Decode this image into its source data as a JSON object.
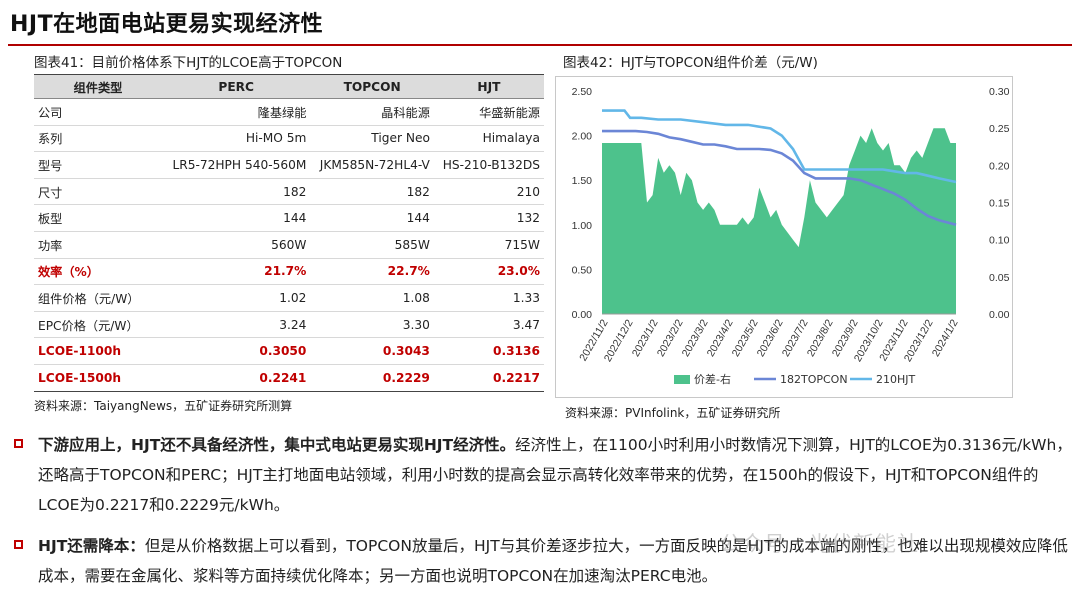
{
  "page_title": "HJT在地面电站更易实现经济性",
  "table_figure": {
    "caption": "图表41：目前价格体系下HJT的LCOE高于TOPCON",
    "headers": [
      "组件类型",
      "PERC",
      "TOPCON",
      "HJT"
    ],
    "rows": [
      {
        "label": "公司",
        "values": [
          "隆基绿能",
          "晶科能源",
          "华盛新能源"
        ],
        "highlight": false
      },
      {
        "label": "系列",
        "values": [
          "Hi-MO 5m",
          "Tiger Neo",
          "Himalaya"
        ],
        "highlight": false
      },
      {
        "label": "型号",
        "values": [
          "LR5-72HPH 540-560M",
          "JKM585N-72HL4-V",
          "HS-210-B132DS"
        ],
        "highlight": false
      },
      {
        "label": "尺寸",
        "values": [
          "182",
          "182",
          "210"
        ],
        "highlight": false
      },
      {
        "label": "板型",
        "values": [
          "144",
          "144",
          "132"
        ],
        "highlight": false
      },
      {
        "label": "功率",
        "values": [
          "560W",
          "585W",
          "715W"
        ],
        "highlight": false
      },
      {
        "label": "效率（%）",
        "values": [
          "21.7%",
          "22.7%",
          "23.0%"
        ],
        "highlight": true
      },
      {
        "label": "组件价格（元/W）",
        "values": [
          "1.02",
          "1.08",
          "1.33"
        ],
        "highlight": false
      },
      {
        "label": "EPC价格（元/W）",
        "values": [
          "3.24",
          "3.30",
          "3.47"
        ],
        "highlight": false
      },
      {
        "label": "LCOE-1100h",
        "values": [
          "0.3050",
          "0.3043",
          "0.3136"
        ],
        "highlight": true
      },
      {
        "label": "LCOE-1500h",
        "values": [
          "0.2241",
          "0.2229",
          "0.2217"
        ],
        "highlight": true
      }
    ],
    "source": "资料来源：TaiyangNews，五矿证券研究所测算"
  },
  "chart_figure": {
    "caption": "图表42：HJT与TOPCON组件价差（元/W)",
    "source": "资料来源：PVInfolink，五矿证券研究所"
  },
  "chart_data": {
    "type": "area",
    "title": "图表42：HJT与TOPCON组件价差（元/W)",
    "x_tick_labels": [
      "2022/11/2",
      "2022/12/2",
      "2023/1/2",
      "2023/2/2",
      "2023/3/2",
      "2023/4/2",
      "2023/5/2",
      "2023/6/2",
      "2023/7/2",
      "2023/8/2",
      "2023/9/2",
      "2023/10/2",
      "2023/11/2",
      "2023/12/2",
      "2024/1/2"
    ],
    "y_left_ticks": [
      "0.00",
      "0.50",
      "1.00",
      "1.50",
      "2.00",
      "2.50"
    ],
    "y_left_range": [
      0,
      2.5
    ],
    "y_right_ticks": [
      "0.00",
      "0.05",
      "0.10",
      "0.15",
      "0.20",
      "0.25",
      "0.30"
    ],
    "y_right_range": [
      0,
      0.3
    ],
    "x_range": [
      0,
      63
    ],
    "series": [
      {
        "name": "价差-右",
        "kind": "area",
        "axis": "right",
        "color": "#4dc28c",
        "x": [
          0,
          7,
          8,
          9,
          10,
          11,
          12,
          13,
          14,
          15,
          16,
          17,
          18,
          19,
          20,
          21,
          22,
          23,
          24,
          25,
          26,
          27,
          28,
          29,
          30,
          31,
          32,
          33,
          34,
          35,
          36,
          37,
          38,
          39,
          40,
          41,
          42,
          43,
          44,
          45,
          46,
          47,
          48,
          49,
          50,
          51,
          52,
          53,
          54,
          55,
          56,
          57,
          58,
          59,
          60,
          61,
          62,
          63
        ],
        "y": [
          0.23,
          0.23,
          0.15,
          0.16,
          0.21,
          0.19,
          0.2,
          0.19,
          0.16,
          0.19,
          0.18,
          0.15,
          0.14,
          0.15,
          0.14,
          0.12,
          0.12,
          0.12,
          0.12,
          0.13,
          0.12,
          0.13,
          0.17,
          0.15,
          0.13,
          0.14,
          0.12,
          0.11,
          0.1,
          0.09,
          0.13,
          0.18,
          0.15,
          0.14,
          0.13,
          0.14,
          0.15,
          0.16,
          0.2,
          0.22,
          0.24,
          0.23,
          0.25,
          0.23,
          0.22,
          0.23,
          0.2,
          0.2,
          0.19,
          0.21,
          0.22,
          0.21,
          0.23,
          0.25,
          0.25,
          0.25,
          0.23,
          0.23
        ]
      },
      {
        "name": "182TOPCON",
        "kind": "line",
        "axis": "left",
        "color": "#6b86d6",
        "x": [
          0,
          4,
          6,
          8,
          10,
          12,
          14,
          16,
          18,
          20,
          22,
          24,
          26,
          28,
          30,
          32,
          34,
          36,
          38,
          40,
          42,
          44,
          46,
          48,
          50,
          52,
          54,
          56,
          58,
          60,
          63
        ],
        "y": [
          2.05,
          2.05,
          2.05,
          2.04,
          2.02,
          1.98,
          1.96,
          1.93,
          1.9,
          1.9,
          1.88,
          1.85,
          1.85,
          1.85,
          1.84,
          1.8,
          1.72,
          1.58,
          1.52,
          1.52,
          1.52,
          1.52,
          1.5,
          1.45,
          1.4,
          1.35,
          1.28,
          1.18,
          1.1,
          1.05,
          1.0
        ]
      },
      {
        "name": "210HJT",
        "kind": "line",
        "axis": "left",
        "color": "#62b7e8",
        "x": [
          0,
          4,
          5,
          7,
          10,
          14,
          18,
          22,
          26,
          30,
          32,
          34,
          36,
          38,
          40,
          42,
          44,
          46,
          48,
          50,
          52,
          54,
          56,
          58,
          60,
          63
        ],
        "y": [
          2.28,
          2.28,
          2.2,
          2.2,
          2.18,
          2.18,
          2.15,
          2.12,
          2.12,
          2.08,
          2.0,
          1.85,
          1.62,
          1.62,
          1.62,
          1.62,
          1.62,
          1.62,
          1.62,
          1.62,
          1.6,
          1.58,
          1.58,
          1.55,
          1.52,
          1.48
        ]
      }
    ],
    "legend": [
      "价差-右",
      "182TOPCON",
      "210HJT"
    ],
    "legend_position": "bottom",
    "grid": false
  },
  "bullets": [
    {
      "bold": "下游应用上，HJT还不具备经济性，集中式电站更易实现HJT经济性。",
      "text": "经济性上，在1100小时利用小时数情况下测算，HJT的LCOE为0.3136元/kWh，还略高于TOPCON和PERC；HJT主打地面电站领域，利用小时数的提高会显示高转化效率带来的优势，在1500h的假设下，HJT和TOPCON组件的LCOE为0.2217和0.2229元/kWh。"
    },
    {
      "bold": "HJT还需降本：",
      "text": "但是从价格数据上可以看到，TOPCON放量后，HJT与其价差逐步拉大，一方面反映的是HJT的成本端的刚性，也难以出现规模效应降低成本，需要在金属化、浆料等方面持续优化降本；另一方面也说明TOPCON在加速淘汰PERC电池。"
    }
  ],
  "watermark": "公众号 · 光伏新能社"
}
